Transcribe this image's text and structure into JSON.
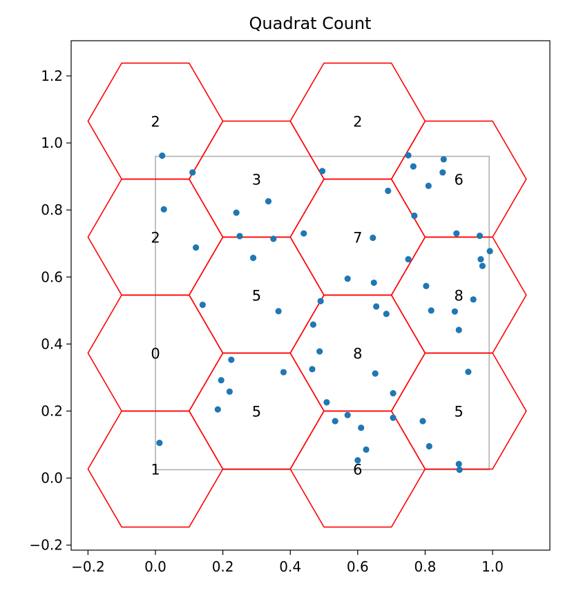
{
  "chart_data": {
    "type": "scatter",
    "title": "Quadrat Count",
    "xlabel": "",
    "ylabel": "",
    "xlim": [
      -0.25,
      1.17
    ],
    "ylim": [
      -0.215,
      1.305
    ],
    "xticks": [
      -0.2,
      0.0,
      0.2,
      0.4,
      0.6,
      0.8,
      1.0
    ],
    "xtick_labels": [
      "−0.2",
      "0.0",
      "0.2",
      "0.4",
      "0.6",
      "0.8",
      "1.0"
    ],
    "yticks": [
      -0.2,
      0.0,
      0.2,
      0.4,
      0.6,
      0.8,
      1.0,
      1.2
    ],
    "ytick_labels": [
      "−0.2",
      "0.0",
      "0.2",
      "0.4",
      "0.6",
      "0.8",
      "1.0",
      "1.2"
    ],
    "grid": false,
    "point_color": "#1f77b4",
    "hex_color": "#ff0000",
    "bbox_color": "#b0b0b0",
    "bounding_box": {
      "xmin": 0.0,
      "xmax": 0.99,
      "ymin": 0.025,
      "ymax": 0.96
    },
    "hexagons": [
      {
        "cx": 0.0,
        "cy": 1.065,
        "count": "2"
      },
      {
        "cx": 0.6,
        "cy": 1.065,
        "count": "2"
      },
      {
        "cx": 0.3,
        "cy": 0.892,
        "count": "3"
      },
      {
        "cx": 0.9,
        "cy": 0.892,
        "count": "6"
      },
      {
        "cx": 0.0,
        "cy": 0.719,
        "count": "2"
      },
      {
        "cx": 0.6,
        "cy": 0.719,
        "count": "7"
      },
      {
        "cx": 0.3,
        "cy": 0.546,
        "count": "5"
      },
      {
        "cx": 0.9,
        "cy": 0.546,
        "count": "8"
      },
      {
        "cx": 0.0,
        "cy": 0.373,
        "count": "0"
      },
      {
        "cx": 0.6,
        "cy": 0.373,
        "count": "8"
      },
      {
        "cx": 0.3,
        "cy": 0.2,
        "count": "5"
      },
      {
        "cx": 0.9,
        "cy": 0.2,
        "count": "5"
      },
      {
        "cx": 0.0,
        "cy": 0.027,
        "count": "1"
      },
      {
        "cx": 0.6,
        "cy": 0.027,
        "count": "6"
      }
    ],
    "hex_radius": 0.2,
    "points": [
      [
        0.012,
        0.105
      ],
      [
        0.02,
        0.962
      ],
      [
        0.025,
        0.802
      ],
      [
        0.11,
        0.912
      ],
      [
        0.12,
        0.688
      ],
      [
        0.14,
        0.517
      ],
      [
        0.185,
        0.205
      ],
      [
        0.195,
        0.292
      ],
      [
        0.22,
        0.258
      ],
      [
        0.225,
        0.353
      ],
      [
        0.24,
        0.792
      ],
      [
        0.25,
        0.722
      ],
      [
        0.29,
        0.657
      ],
      [
        0.335,
        0.826
      ],
      [
        0.35,
        0.714
      ],
      [
        0.365,
        0.498
      ],
      [
        0.38,
        0.316
      ],
      [
        0.44,
        0.73
      ],
      [
        0.465,
        0.325
      ],
      [
        0.468,
        0.458
      ],
      [
        0.487,
        0.378
      ],
      [
        0.49,
        0.528
      ],
      [
        0.495,
        0.916
      ],
      [
        0.508,
        0.226
      ],
      [
        0.533,
        0.17
      ],
      [
        0.57,
        0.595
      ],
      [
        0.57,
        0.188
      ],
      [
        0.6,
        0.053
      ],
      [
        0.61,
        0.15
      ],
      [
        0.625,
        0.085
      ],
      [
        0.645,
        0.717
      ],
      [
        0.648,
        0.583
      ],
      [
        0.652,
        0.312
      ],
      [
        0.655,
        0.512
      ],
      [
        0.685,
        0.49
      ],
      [
        0.69,
        0.857
      ],
      [
        0.705,
        0.253
      ],
      [
        0.705,
        0.18
      ],
      [
        0.75,
        0.653
      ],
      [
        0.75,
        0.963
      ],
      [
        0.765,
        0.93
      ],
      [
        0.768,
        0.783
      ],
      [
        0.793,
        0.17
      ],
      [
        0.803,
        0.573
      ],
      [
        0.81,
        0.872
      ],
      [
        0.812,
        0.095
      ],
      [
        0.818,
        0.5
      ],
      [
        0.852,
        0.912
      ],
      [
        0.855,
        0.951
      ],
      [
        0.888,
        0.497
      ],
      [
        0.893,
        0.73
      ],
      [
        0.9,
        0.442
      ],
      [
        0.9,
        0.042
      ],
      [
        0.902,
        0.025
      ],
      [
        0.928,
        0.317
      ],
      [
        0.943,
        0.533
      ],
      [
        0.962,
        0.723
      ],
      [
        0.965,
        0.653
      ],
      [
        0.97,
        0.633
      ],
      [
        0.992,
        0.677
      ]
    ]
  }
}
